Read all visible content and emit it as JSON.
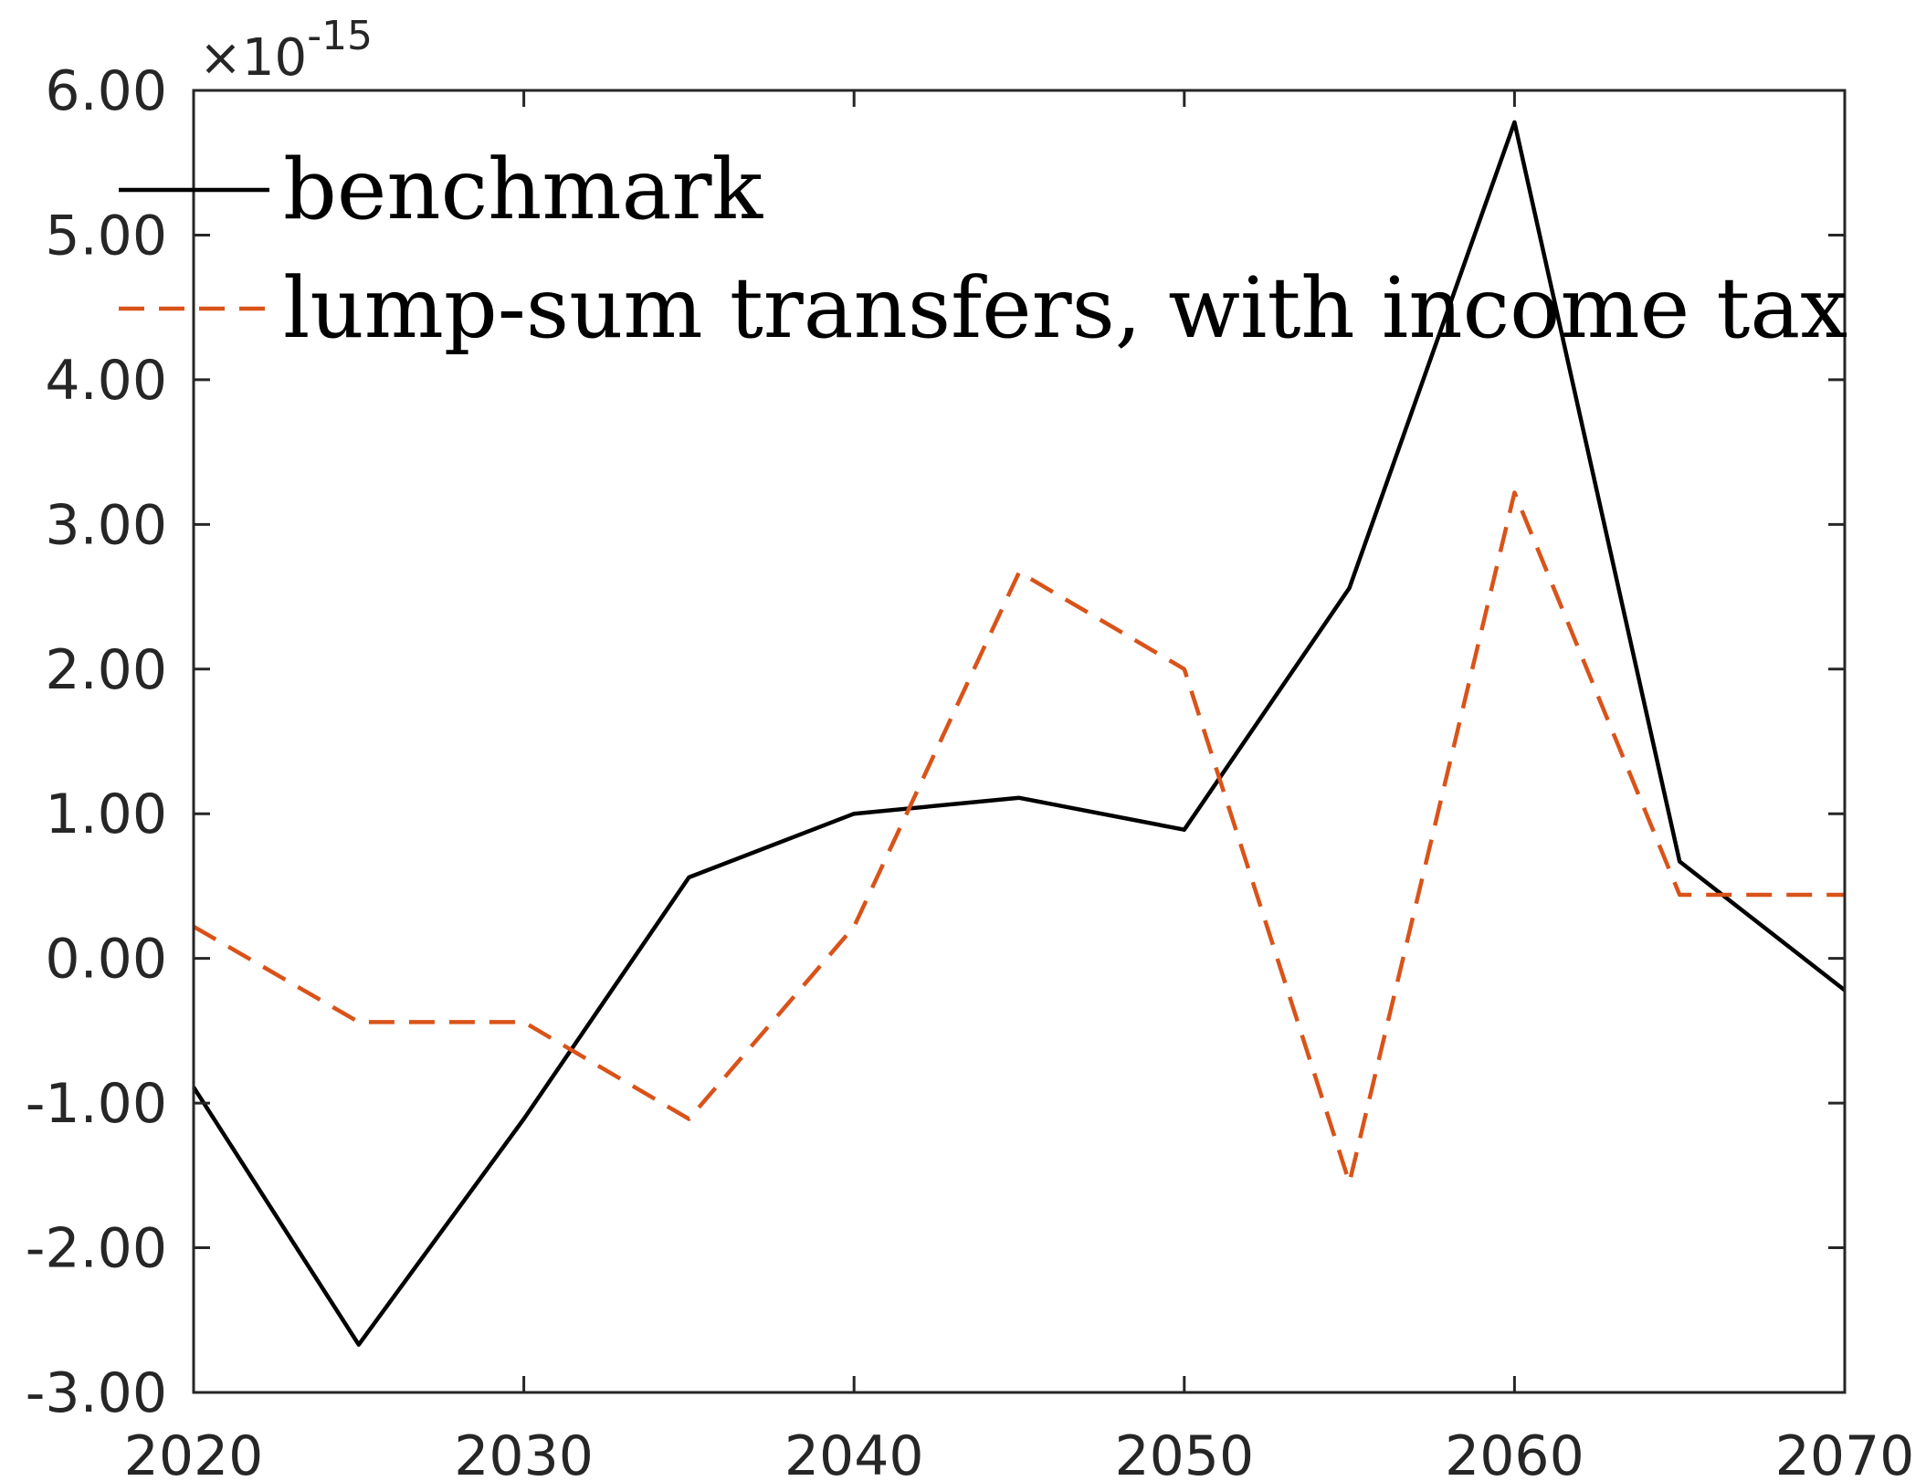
{
  "chart_data": {
    "type": "line",
    "title": "",
    "xlabel": "",
    "ylabel": "",
    "y_exponent_label": {
      "base": "×10",
      "exponent": "-15"
    },
    "xlim": [
      2020,
      2070
    ],
    "ylim": [
      -3,
      6
    ],
    "x_ticks": [
      2020,
      2030,
      2040,
      2050,
      2060,
      2070
    ],
    "y_ticks": [
      -3,
      -2,
      -1,
      0,
      1,
      2,
      3,
      4,
      5,
      6
    ],
    "x_tick_labels": [
      "2020",
      "2030",
      "2040",
      "2050",
      "2060",
      "2070"
    ],
    "y_tick_labels": [
      "-3.00",
      "-2.00",
      "-1.00",
      "0.00",
      "1.00",
      "2.00",
      "3.00",
      "4.00",
      "5.00",
      "6.00"
    ],
    "grid": false,
    "legend_position": "top-left",
    "series": [
      {
        "name": "benchmark",
        "color": "#000000",
        "line_style": "solid",
        "x": [
          2020,
          2025,
          2030,
          2035,
          2040,
          2045,
          2050,
          2055,
          2060,
          2065,
          2070
        ],
        "y": [
          -0.89,
          -2.67,
          -1.11,
          0.56,
          1.0,
          1.11,
          0.89,
          2.56,
          5.78,
          0.67,
          -0.22
        ]
      },
      {
        "name": "lump-sum transfers, with income tax",
        "color": "#D95319",
        "line_style": "dashed",
        "x": [
          2020,
          2025,
          2030,
          2035,
          2040,
          2045,
          2050,
          2055,
          2060,
          2065,
          2070
        ],
        "y": [
          0.22,
          -0.44,
          -0.44,
          -1.11,
          0.22,
          2.67,
          2.0,
          -1.55,
          3.22,
          0.44,
          0.44
        ]
      }
    ]
  }
}
